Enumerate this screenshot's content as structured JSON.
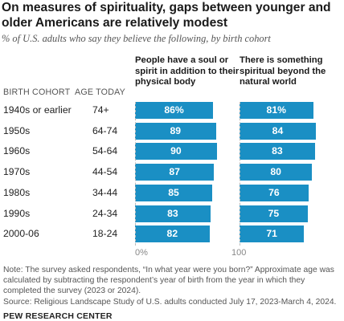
{
  "title": "On measures of spirituality, gaps between younger and older Americans are relatively modest",
  "subtitle": "% of U.S. adults who say they believe the following, by birth cohort",
  "header": {
    "cohort": "BIRTH COHORT",
    "age": "AGE TODAY"
  },
  "chart_data": {
    "type": "bar",
    "orientation": "horizontal",
    "categories": [
      "1940s or earlier",
      "1950s",
      "1960s",
      "1970s",
      "1980s",
      "1990s",
      "2000-06"
    ],
    "ages": [
      "74+",
      "64-74",
      "54-64",
      "44-54",
      "34-44",
      "24-34",
      "18-24"
    ],
    "series": [
      {
        "name": "People have a soul or spirit in addition to their physical body",
        "values": [
          86,
          89,
          90,
          87,
          85,
          83,
          82
        ],
        "labels": [
          "86%",
          "89",
          "90",
          "87",
          "85",
          "83",
          "82"
        ]
      },
      {
        "name": "There is something spiritual beyond the natural world",
        "values": [
          81,
          84,
          83,
          80,
          76,
          75,
          71
        ],
        "labels": [
          "81%",
          "84",
          "83",
          "80",
          "76",
          "75",
          "71"
        ]
      }
    ],
    "xlim": [
      0,
      100
    ],
    "ticks": [
      "0%",
      "100"
    ],
    "color": "#1a8fc4"
  },
  "note": "Note: The survey asked respondents, “In what year were you born?” Approximate age was calculated by subtracting the respondent’s year of birth from the year in which they completed the survey (2023 or 2024).",
  "source": "Source: Religious Landscape Study of U.S. adults conducted July 17, 2023-March 4, 2024.",
  "brand": "PEW RESEARCH CENTER"
}
